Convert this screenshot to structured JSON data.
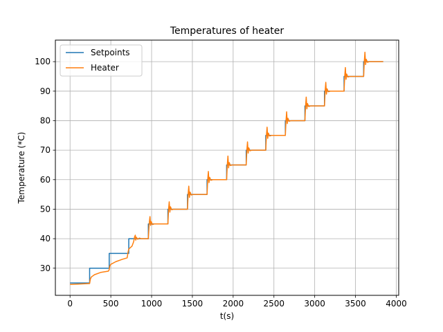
{
  "chart_data": {
    "type": "line",
    "title": "Temperatures of heater",
    "xlabel": "t(s)",
    "ylabel": "Temperature (*C)",
    "xlim": [
      -180,
      4030
    ],
    "ylim": [
      20.8,
      107.3
    ],
    "xticks": [
      0,
      500,
      1000,
      1500,
      2000,
      2500,
      3000,
      3500,
      4000
    ],
    "yticks": [
      30,
      40,
      50,
      60,
      70,
      80,
      90,
      100
    ],
    "grid": true,
    "legend_position": "top-left",
    "series": [
      {
        "name": "Setpoints",
        "color": "#1f77b4",
        "x": [
          0,
          240,
          240,
          480,
          480,
          720,
          720,
          960,
          960,
          1200,
          1200,
          1440,
          1440,
          1680,
          1680,
          1920,
          1920,
          2160,
          2160,
          2400,
          2400,
          2640,
          2640,
          2880,
          2880,
          3120,
          3120,
          3360,
          3360,
          3600,
          3600,
          3840
        ],
        "y": [
          25,
          25,
          30,
          30,
          35,
          35,
          40,
          40,
          45,
          45,
          50,
          50,
          55,
          55,
          60,
          60,
          65,
          65,
          70,
          70,
          75,
          75,
          80,
          80,
          85,
          85,
          90,
          90,
          95,
          95,
          100,
          100
        ]
      },
      {
        "name": "Heater",
        "color": "#ff7f0e",
        "x": [
          0,
          240,
          248,
          260,
          300,
          380,
          470,
          480,
          488,
          500,
          560,
          640,
          700,
          712,
          720,
          740,
          760,
          780,
          790,
          800,
          805,
          812,
          830,
          850,
          870,
          960,
          970,
          980,
          988,
          996,
          1010,
          1030,
          1200,
          1208,
          1216,
          1224,
          1232,
          1246,
          1270,
          1440,
          1448,
          1456,
          1464,
          1472,
          1486,
          1510,
          1680,
          1688,
          1696,
          1704,
          1712,
          1726,
          1750,
          1920,
          1928,
          1936,
          1944,
          1952,
          1966,
          1990,
          2160,
          2168,
          2176,
          2184,
          2192,
          2206,
          2230,
          2400,
          2408,
          2416,
          2424,
          2432,
          2446,
          2470,
          2640,
          2648,
          2656,
          2664,
          2672,
          2686,
          2710,
          2880,
          2888,
          2896,
          2904,
          2912,
          2926,
          2950,
          3120,
          3128,
          3136,
          3144,
          3152,
          3166,
          3190,
          3360,
          3368,
          3376,
          3384,
          3392,
          3406,
          3430,
          3600,
          3608,
          3616,
          3624,
          3632,
          3646,
          3670,
          3840
        ],
        "y": [
          24.5,
          24.8,
          26.2,
          27.0,
          27.8,
          28.6,
          29.0,
          29.5,
          30.8,
          31.3,
          32.2,
          33.0,
          33.5,
          35.5,
          36.5,
          37.0,
          37.5,
          39.0,
          40.5,
          41.2,
          39.5,
          40.5,
          39.8,
          40.2,
          40.0,
          40.0,
          45.0,
          47.5,
          44.5,
          45.8,
          44.8,
          45.0,
          45.0,
          50.0,
          52.5,
          49.0,
          50.8,
          49.8,
          50.0,
          50.0,
          55.0,
          57.8,
          54.0,
          55.8,
          54.8,
          55.0,
          55.0,
          60.0,
          62.8,
          59.0,
          60.8,
          59.8,
          60.0,
          60.0,
          65.0,
          68.0,
          64.0,
          65.8,
          64.8,
          65.0,
          65.0,
          70.0,
          72.8,
          69.0,
          70.8,
          69.8,
          70.0,
          70.0,
          75.0,
          77.8,
          74.0,
          75.8,
          74.8,
          75.0,
          75.0,
          80.0,
          83.0,
          79.0,
          80.8,
          79.8,
          80.0,
          80.0,
          85.0,
          88.0,
          84.0,
          85.8,
          84.8,
          85.0,
          85.0,
          90.0,
          93.0,
          89.0,
          90.8,
          89.8,
          90.0,
          90.0,
          95.0,
          98.0,
          94.0,
          95.8,
          94.8,
          95.0,
          95.0,
          100.0,
          103.2,
          99.0,
          100.8,
          99.8,
          100.0,
          100.0
        ]
      }
    ]
  }
}
